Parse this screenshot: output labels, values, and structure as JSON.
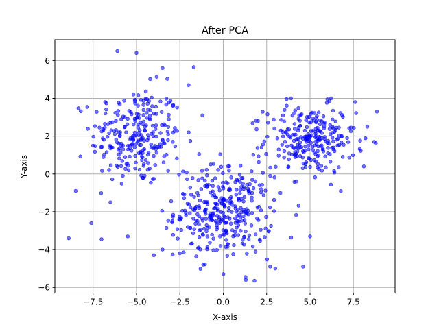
{
  "chart_data": {
    "type": "scatter",
    "title": "After PCA",
    "xlabel": "X-axis",
    "ylabel": "Y-axis",
    "xlim": [
      -9.7,
      9.9
    ],
    "ylim": [
      -6.3,
      7.1
    ],
    "xticks": [
      -7.5,
      -5.0,
      -2.5,
      0.0,
      2.5,
      5.0,
      7.5
    ],
    "xtick_labels": [
      "−7.5",
      "−5.0",
      "−2.5",
      "0.0",
      "2.5",
      "5.0",
      "7.5"
    ],
    "yticks": [
      -6,
      -4,
      -2,
      0,
      2,
      4,
      6
    ],
    "ytick_labels": [
      "−6",
      "−4",
      "−2",
      "0",
      "2",
      "4",
      "6"
    ],
    "grid": true,
    "marker_color": "#0000ff",
    "marker_alpha": 0.55,
    "series": [
      {
        "clusters": [
          {
            "center": [
              -5.0,
              2.0
            ],
            "spread": [
              1.3,
              1.3
            ],
            "count": 260
          },
          {
            "center": [
              0.0,
              -2.0
            ],
            "spread": [
              1.4,
              1.2
            ],
            "count": 340
          },
          {
            "center": [
              5.0,
              1.8
            ],
            "spread": [
              1.3,
              0.9
            ],
            "count": 260
          }
        ],
        "points": [
          [
            -8.9,
            -3.4
          ],
          [
            -8.5,
            -0.9
          ],
          [
            -6.1,
            6.5
          ],
          [
            -5.0,
            6.4
          ],
          [
            -3.5,
            5.6
          ],
          [
            -1.7,
            5.65
          ],
          [
            -2.0,
            4.7
          ],
          [
            -4.0,
            -4.3
          ],
          [
            1.3,
            -5.6
          ],
          [
            1.8,
            -5.65
          ],
          [
            2.7,
            -4.9
          ],
          [
            4.6,
            -4.9
          ],
          [
            6.0,
            3.95
          ],
          [
            8.85,
            3.3
          ],
          [
            8.1,
            0.4
          ],
          [
            7.6,
            3.8
          ],
          [
            8.3,
            2.5
          ],
          [
            8.7,
            1.7
          ],
          [
            -7.6,
            -2.6
          ],
          [
            -5.5,
            -3.3
          ],
          [
            -3.5,
            -4.0
          ],
          [
            -2.5,
            -4.2
          ],
          [
            3.0,
            -5.0
          ],
          [
            5.0,
            -3.3
          ],
          [
            -6.8,
            3.8
          ],
          [
            -7.5,
            1.5
          ],
          [
            -6.5,
            -1.5
          ],
          [
            -1.2,
            3.1
          ],
          [
            3.9,
            4.0
          ],
          [
            2.0,
            2.8
          ]
        ]
      }
    ]
  }
}
